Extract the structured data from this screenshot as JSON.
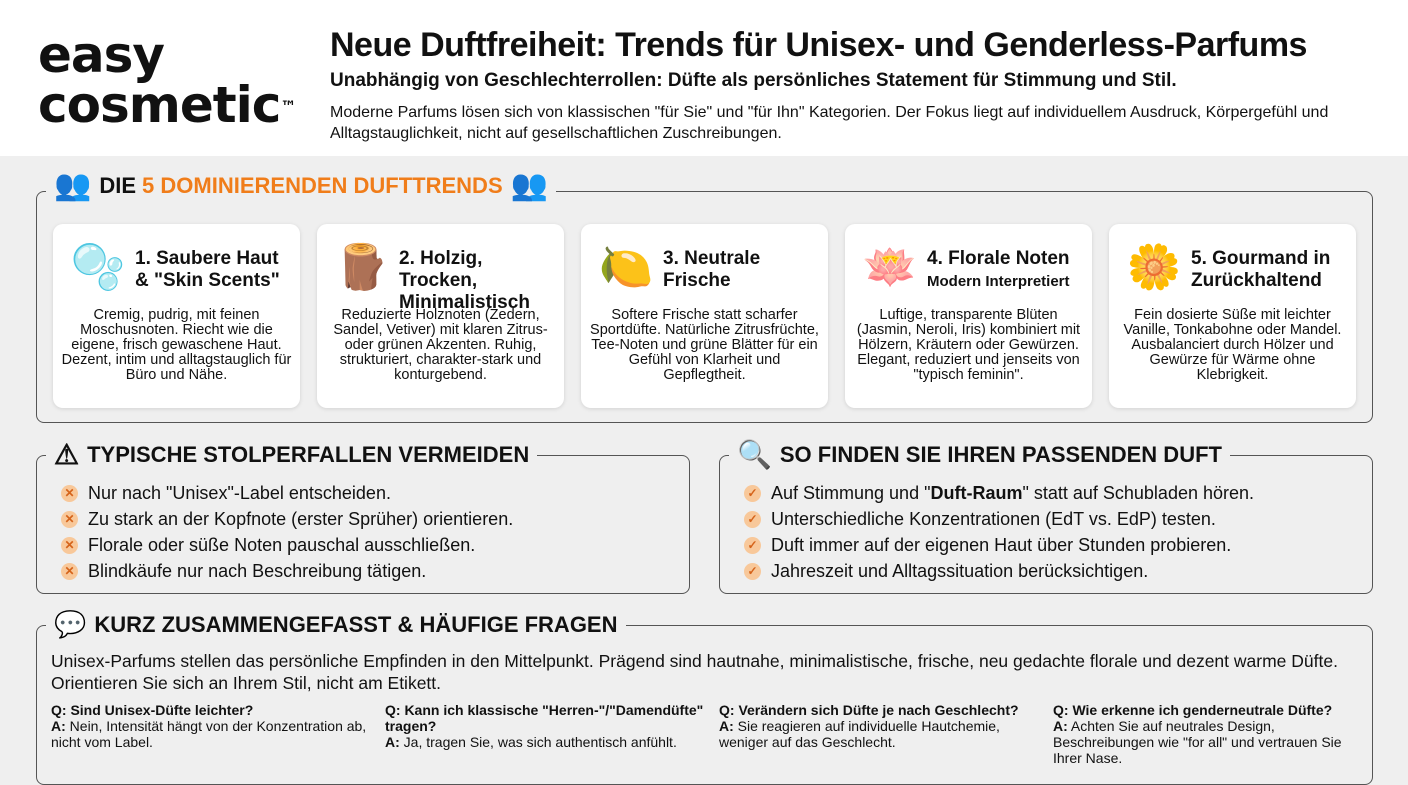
{
  "logo": {
    "line1": "easy",
    "line2": "cosmetic",
    "tm": "™"
  },
  "header": {
    "title": "Neue Duftfreiheit: Trends für Unisex- und Genderless-Parfums",
    "subtitle": "Unabhängig von Geschlechterrollen: Düfte als persönliches Statement für Stimmung und Stil.",
    "intro": "Moderne Parfums lösen sich von klassischen \"für Sie\" und \"für Ihn\" Kategorien. Der Fokus liegt auf individuellem Ausdruck, Körpergefühl und Alltagstauglichkeit, nicht auf gesellschaftlichen Zuschreibungen."
  },
  "trends": {
    "title_prefix": "DIE",
    "title_highlight": "5 DOMINIERENDEN DUFTTRENDS",
    "accent": "#f07d1a",
    "cards": [
      {
        "icon": "soap-bubbles-icon",
        "title": "1. Saubere Haut & \"Skin Scents\"",
        "subtitle": "",
        "text": "Cremig, pudrig, mit feinen Moschusnoten. Riecht wie die eigene, frisch gewaschene Haut. Dezent, intim und alltagstauglich für Büro und Nähe."
      },
      {
        "icon": "wood-log-icon",
        "title": "2. Holzig, Trocken, Minimalistisch",
        "subtitle": "",
        "text": "Reduzierte Holznoten (Zedern, Sandel, Vetiver) mit klaren Zitrus- oder grünen Akzenten. Ruhig, strukturiert, charakter-stark und konturgebend."
      },
      {
        "icon": "water-lemon-icon",
        "title": "3. Neutrale Frische",
        "subtitle": "",
        "text": "Softere Frische statt scharfer Sportdüfte. Natürliche Zitrusfrüchte, Tee-Noten und grüne Blätter für ein Gefühl von Klarheit und Gepflegtheit."
      },
      {
        "icon": "lotus-flower-icon",
        "title": "4. Florale Noten",
        "subtitle": "Modern Interpretiert",
        "text": "Luftige, transparente Blüten (Jasmin, Neroli, Iris) kombiniert mit Hölzern, Kräutern oder Gewürzen. Elegant, reduziert und jenseits von \"typisch feminin\"."
      },
      {
        "icon": "vanilla-almond-icon",
        "title": "5. Gourmand in Zurückhaltend",
        "subtitle": "",
        "text": "Fein dosierte Süße mit leichter Vanille, Tonkabohne oder Mandel. Ausbalanciert durch Hölzer und Gewürze für Wärme ohne Klebrigkeit."
      }
    ]
  },
  "pitfalls": {
    "title": "TYPISCHE STOLPERFALLEN VERMEIDEN",
    "items": [
      "Nur nach \"Unisex\"-Label entscheiden.",
      "Zu stark an der Kopfnote (erster Sprüher) orientieren.",
      "Florale oder süße Noten pauschal ausschließen.",
      "Blindkäufe nur nach Beschreibung tätigen."
    ]
  },
  "finder": {
    "title": "SO FINDEN SIE IHREN PASSENDEN DUFT",
    "items": [
      {
        "pre": "Auf Stimmung und \"",
        "bold": "Duft-Raum",
        "post": "\" statt auf Schubladen hören."
      },
      {
        "pre": "Unterschiedliche Konzentrationen (EdT vs. EdP) testen.",
        "bold": "",
        "post": ""
      },
      {
        "pre": "Duft immer auf der eigenen Haut über Stunden probieren.",
        "bold": "",
        "post": ""
      },
      {
        "pre": "Jahreszeit und Alltagssituation berücksichtigen.",
        "bold": "",
        "post": ""
      }
    ]
  },
  "summary": {
    "title": "KURZ ZUSAMMENGEFASST & HÄUFIGE FRAGEN",
    "text": "Unisex-Parfums stellen das persönliche Empfinden in den Mittelpunkt. Prägend sind hautnahe, minimalistische, frische, neu gedachte florale und dezent warme Düfte. Orientieren Sie sich an Ihrem Stil, nicht am Etikett.",
    "faq": [
      {
        "q": "Q: Sind Unisex-Düfte leichter?",
        "a_label": "A:",
        "a": " Nein, Intensität hängt von der Konzentration ab, nicht vom Label."
      },
      {
        "q": "Q: Kann ich klassische \"Herren-\"/\"Damendüfte\" tragen?",
        "a_label": "A:",
        "a": " Ja, tragen Sie, was sich authentisch anfühlt."
      },
      {
        "q": "Q: Verändern sich Düfte je nach Geschlecht?",
        "a_label": "A:",
        "a": " Sie reagieren auf individuelle Hautchemie, weniger auf das Geschlecht."
      },
      {
        "q": "Q: Wie erkenne ich genderneutrale Düfte?",
        "a_label": "A:",
        "a": " Achten Sie auf neutrales Design, Beschreibungen wie \"for all\" und vertrauen Sie Ihrer Nase."
      }
    ]
  }
}
